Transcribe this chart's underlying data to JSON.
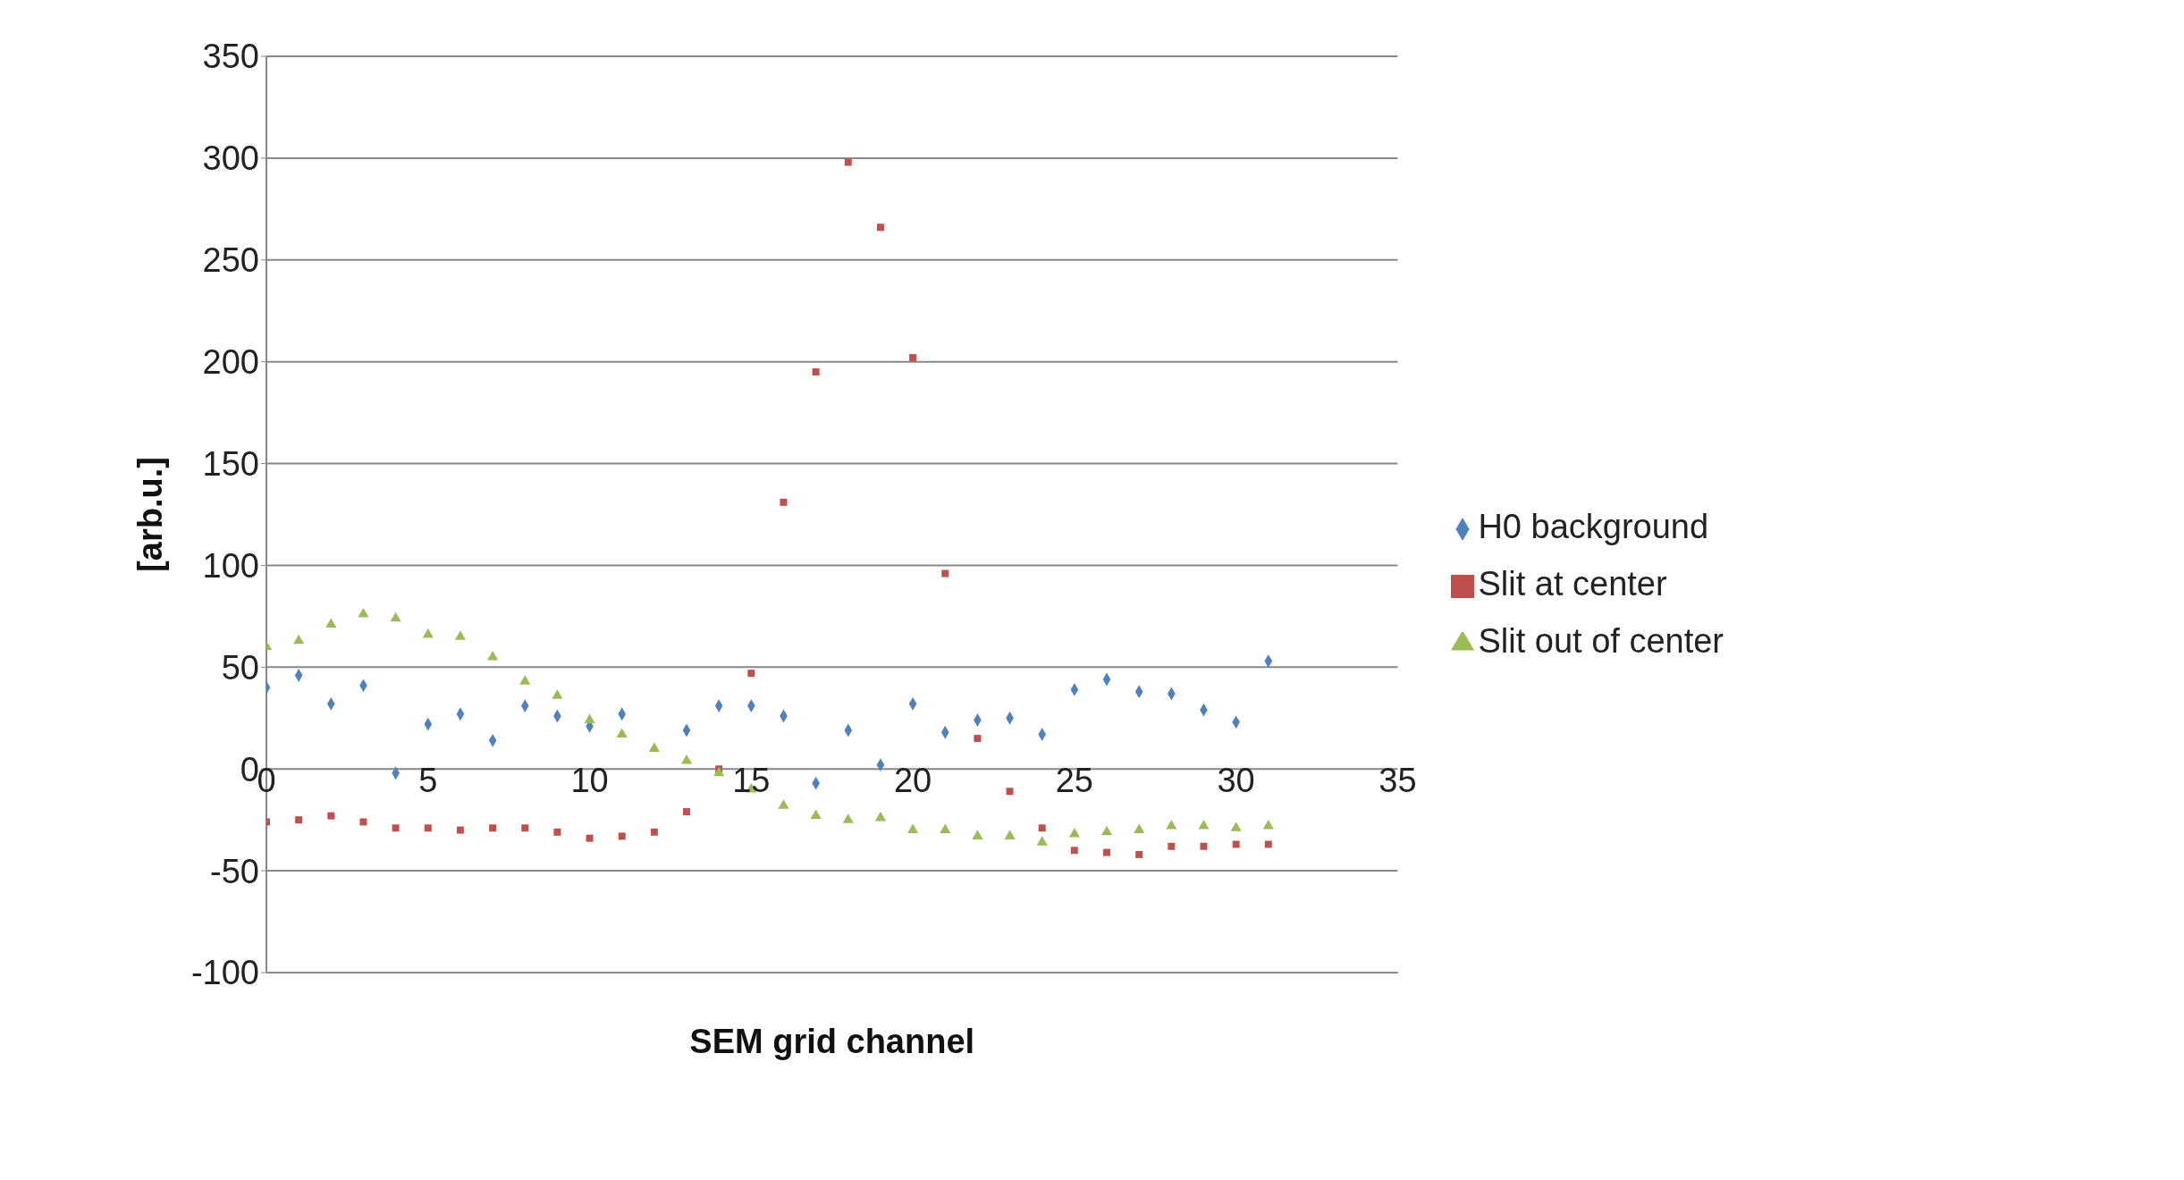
{
  "chart_data": {
    "type": "scatter",
    "xlabel": "SEM grid channel",
    "ylabel": "[arb.u.]",
    "x": [
      0,
      1,
      2,
      3,
      4,
      5,
      6,
      7,
      8,
      9,
      10,
      11,
      12,
      13,
      14,
      15,
      16,
      17,
      18,
      19,
      20,
      21,
      22,
      23,
      24,
      25,
      26,
      27,
      28,
      29,
      30,
      31
    ],
    "series": [
      {
        "name": "H0 background",
        "color": "#4f81bd",
        "marker": "diamond",
        "values": [
          40,
          46,
          32,
          41,
          -2,
          22,
          27,
          14,
          31,
          26,
          21,
          27,
          null,
          19,
          31,
          31,
          26,
          -7,
          19,
          2,
          32,
          18,
          24,
          25,
          17,
          39,
          44,
          38,
          37,
          29,
          23,
          53
        ]
      },
      {
        "name": "Slit at center",
        "color": "#c0504d",
        "marker": "square",
        "values": [
          -26,
          -25,
          -23,
          -26,
          -29,
          -29,
          -30,
          -29,
          -29,
          -31,
          -34,
          -33,
          -31,
          -21,
          0,
          47,
          131,
          195,
          298,
          266,
          202,
          96,
          15,
          -11,
          -29,
          -40,
          -41,
          -42,
          -38,
          -38,
          -37,
          -37
        ]
      },
      {
        "name": "Slit out of center",
        "color": "#9bbb59",
        "marker": "triangle",
        "values": [
          60,
          63,
          71,
          76,
          74,
          66,
          65,
          55,
          43,
          36,
          24,
          17,
          10,
          4,
          -2,
          -10,
          -18,
          -23,
          -25,
          -24,
          -30,
          -30,
          -33,
          -33,
          -36,
          -32,
          -31,
          -30,
          -28,
          -28,
          -29,
          -28
        ]
      }
    ],
    "xlim": [
      0,
      35
    ],
    "xticks": [
      0,
      5,
      10,
      15,
      20,
      25,
      30,
      35
    ],
    "ylim": [
      -100,
      350
    ],
    "yticks": [
      -100,
      -50,
      0,
      50,
      100,
      150,
      200,
      250,
      300,
      350
    ],
    "grid": "y",
    "legend": "right"
  }
}
